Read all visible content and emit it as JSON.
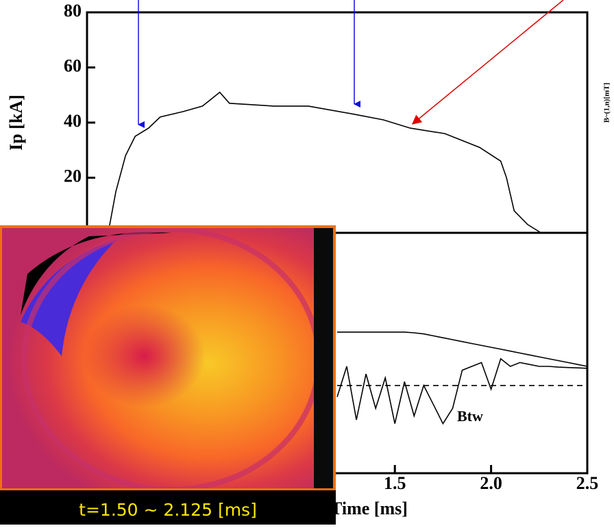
{
  "chart_data": [
    {
      "type": "line",
      "y_label": "Ip [kA]",
      "xlim": [
        -0.1,
        2.5
      ],
      "ylim": [
        0,
        80
      ],
      "yticks": [
        20,
        40,
        60,
        80
      ],
      "x": [
        0.01,
        0.05,
        0.1,
        0.15,
        0.22,
        0.28,
        0.4,
        0.5,
        0.59,
        0.64,
        0.87,
        1.05,
        1.29,
        1.44,
        1.58,
        1.76,
        1.94,
        2.05,
        2.08,
        2.12,
        2.19,
        2.26,
        2.3
      ],
      "series": [
        {
          "color": "#000000",
          "values": [
            0,
            15,
            28,
            35,
            38,
            42,
            44,
            46,
            51,
            47,
            46,
            46,
            43,
            41,
            38,
            36,
            31,
            26,
            20,
            8,
            3,
            0,
            0
          ]
        }
      ]
    },
    {
      "type": "line",
      "x_label": "Time [ms]",
      "y_label": "B~(1,n)[mT]",
      "annotation": "Btw",
      "xlim": [
        -0.1,
        2.5
      ],
      "ylim": [
        -2.3,
        4
      ],
      "xticks": [
        1.5,
        {
          "value": 2.0,
          "label": "2.0"
        },
        2.5
      ],
      "x": [
        1.2,
        1.25,
        1.3,
        1.35,
        1.4,
        1.45,
        1.5,
        1.55,
        1.6,
        1.65,
        1.7,
        1.75,
        1.8,
        1.85,
        1.9,
        1.95,
        2.0,
        2.05,
        2.1,
        2.15,
        2.2,
        2.25,
        2.3,
        2.35,
        2.4,
        2.45,
        2.5
      ],
      "series": [
        {
          "color": "#000000",
          "values": [
            1.4,
            1.4,
            1.4,
            1.4,
            1.4,
            1.4,
            1.4,
            1.4,
            1.38,
            1.35,
            1.3,
            1.25,
            1.2,
            1.15,
            1.1,
            1.05,
            1.0,
            0.95,
            0.9,
            0.85,
            0.8,
            0.75,
            0.7,
            0.65,
            0.6,
            0.55,
            0.5
          ]
        },
        {
          "color": "#000000",
          "values": [
            -0.3,
            0.5,
            -0.9,
            0.3,
            -0.6,
            0.2,
            -1.0,
            0.1,
            -0.8,
            0.0,
            -0.5,
            -1.0,
            -0.6,
            0.4,
            0.5,
            0.6,
            -0.1,
            0.7,
            0.5,
            0.6,
            0.55,
            0.5,
            0.5,
            0.48,
            0.47,
            0.46,
            0.45
          ]
        },
        {
          "color": "#000000",
          "dashed": true,
          "values": [
            0,
            0,
            0,
            0,
            0,
            0,
            0,
            0,
            0,
            0,
            0,
            0,
            0,
            0,
            0,
            0,
            0,
            0,
            0,
            0,
            0,
            0,
            0,
            0,
            0,
            0,
            0
          ]
        }
      ]
    }
  ],
  "inset": {
    "caption": "t=1.50 ~ 2.125 [ms]"
  }
}
